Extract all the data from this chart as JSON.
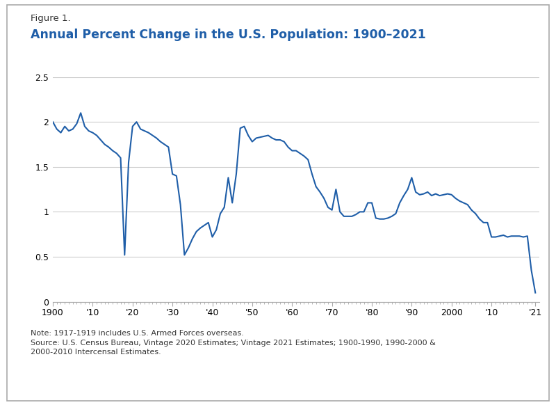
{
  "title_label": "Figure 1.",
  "title": "Annual Percent Change in the U.S. Population: 1900–2021",
  "title_color": "#1F5EA8",
  "note": "Note: 1917-1919 includes U.S. Armed Forces overseas.\nSource: U.S. Census Bureau, Vintage 2020 Estimates; Vintage 2021 Estimates; 1900-1990, 1990-2000 &\n2000-2010 Intercensal Estimates.",
  "line_color": "#1F5EA8",
  "background_color": "#FFFFFF",
  "ylim": [
    0,
    2.5
  ],
  "yticks": [
    0,
    0.5,
    1.0,
    1.5,
    2.0,
    2.5
  ],
  "xtick_labels": [
    "1900",
    "'10",
    "'20",
    "'30",
    "'40",
    "'50",
    "'60",
    "'70",
    "'80",
    "'90",
    "2000",
    "'10",
    "'21"
  ],
  "xtick_positions": [
    1900,
    1910,
    1920,
    1930,
    1940,
    1950,
    1960,
    1970,
    1980,
    1990,
    2000,
    2010,
    2021
  ],
  "years": [
    1900,
    1901,
    1902,
    1903,
    1904,
    1905,
    1906,
    1907,
    1908,
    1909,
    1910,
    1911,
    1912,
    1913,
    1914,
    1915,
    1916,
    1917,
    1918,
    1919,
    1920,
    1921,
    1922,
    1923,
    1924,
    1925,
    1926,
    1927,
    1928,
    1929,
    1930,
    1931,
    1932,
    1933,
    1934,
    1935,
    1936,
    1937,
    1938,
    1939,
    1940,
    1941,
    1942,
    1943,
    1944,
    1945,
    1946,
    1947,
    1948,
    1949,
    1950,
    1951,
    1952,
    1953,
    1954,
    1955,
    1956,
    1957,
    1958,
    1959,
    1960,
    1961,
    1962,
    1963,
    1964,
    1965,
    1966,
    1967,
    1968,
    1969,
    1970,
    1971,
    1972,
    1973,
    1974,
    1975,
    1976,
    1977,
    1978,
    1979,
    1980,
    1981,
    1982,
    1983,
    1984,
    1985,
    1986,
    1987,
    1988,
    1989,
    1990,
    1991,
    1992,
    1993,
    1994,
    1995,
    1996,
    1997,
    1998,
    1999,
    2000,
    2001,
    2002,
    2003,
    2004,
    2005,
    2006,
    2007,
    2008,
    2009,
    2010,
    2011,
    2012,
    2013,
    2014,
    2015,
    2016,
    2017,
    2018,
    2019,
    2020,
    2021
  ],
  "values": [
    2.0,
    1.92,
    1.88,
    1.95,
    1.9,
    1.92,
    1.98,
    2.1,
    1.95,
    1.9,
    1.88,
    1.85,
    1.8,
    1.75,
    1.72,
    1.68,
    1.65,
    1.6,
    0.52,
    1.55,
    1.95,
    2.0,
    1.92,
    1.9,
    1.88,
    1.85,
    1.82,
    1.78,
    1.75,
    1.72,
    1.42,
    1.4,
    1.08,
    0.52,
    0.6,
    0.7,
    0.78,
    0.82,
    0.85,
    0.88,
    0.72,
    0.8,
    0.98,
    1.05,
    1.38,
    1.1,
    1.42,
    1.93,
    1.95,
    1.85,
    1.78,
    1.82,
    1.83,
    1.84,
    1.85,
    1.82,
    1.8,
    1.8,
    1.78,
    1.72,
    1.68,
    1.68,
    1.65,
    1.62,
    1.58,
    1.42,
    1.28,
    1.22,
    1.15,
    1.05,
    1.02,
    1.25,
    1.0,
    0.95,
    0.95,
    0.95,
    0.97,
    1.0,
    1.0,
    1.1,
    1.1,
    0.93,
    0.92,
    0.92,
    0.93,
    0.95,
    0.98,
    1.1,
    1.18,
    1.25,
    1.38,
    1.22,
    1.19,
    1.2,
    1.22,
    1.18,
    1.2,
    1.18,
    1.19,
    1.2,
    1.19,
    1.15,
    1.12,
    1.1,
    1.08,
    1.02,
    0.98,
    0.92,
    0.88,
    0.88,
    0.72,
    0.72,
    0.73,
    0.74,
    0.72,
    0.73,
    0.73,
    0.73,
    0.72,
    0.73,
    0.35,
    0.1
  ]
}
